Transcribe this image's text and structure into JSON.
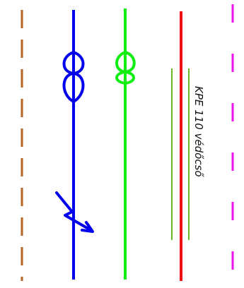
{
  "diagram": {
    "annotation": "KPE 110 védőcső",
    "colors": {
      "brown_dashed": "#b5651d",
      "blue_line": "#0000ee",
      "green_line": "#11ee11",
      "red_line": "#ee1111",
      "pipe_outline": "#66bb22",
      "magenta_dashed": "#ee11ee"
    },
    "lines": [
      {
        "name": "brown-dashed-line",
        "style": "dashed"
      },
      {
        "name": "blue-cable-line",
        "style": "solid",
        "symbols": [
          "double-loop",
          "lightning-arrow"
        ]
      },
      {
        "name": "green-cable-line",
        "style": "solid",
        "symbols": [
          "double-loop"
        ]
      },
      {
        "name": "red-cable-line",
        "style": "solid"
      },
      {
        "name": "magenta-dashed-line",
        "style": "dashed"
      }
    ]
  }
}
